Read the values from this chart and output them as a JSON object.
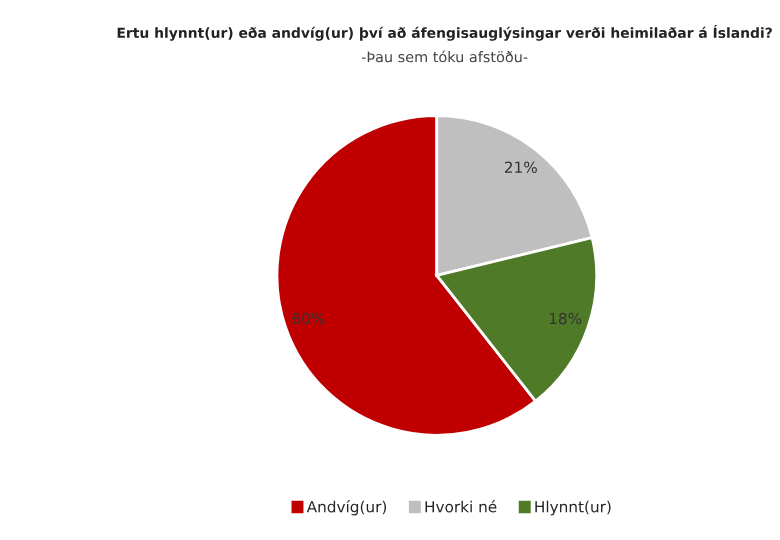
{
  "chart_data": {
    "type": "pie",
    "title": "Ertu hlynnt(ur) eða andvíg(ur) því að áfengisauglýsingar verði heimilaðar á Íslandi?",
    "subtitle": "-Þau sem tóku afstöðu-",
    "categories": [
      "Andvíg(ur)",
      "Hvorki né",
      "Hlynnt(ur)"
    ],
    "values": [
      60,
      21,
      18
    ],
    "colors": [
      "#c00000",
      "#bfbfbf",
      "#4f7a28"
    ],
    "value_labels": [
      "60%",
      "21%",
      "18%"
    ],
    "legend": "bottom"
  }
}
